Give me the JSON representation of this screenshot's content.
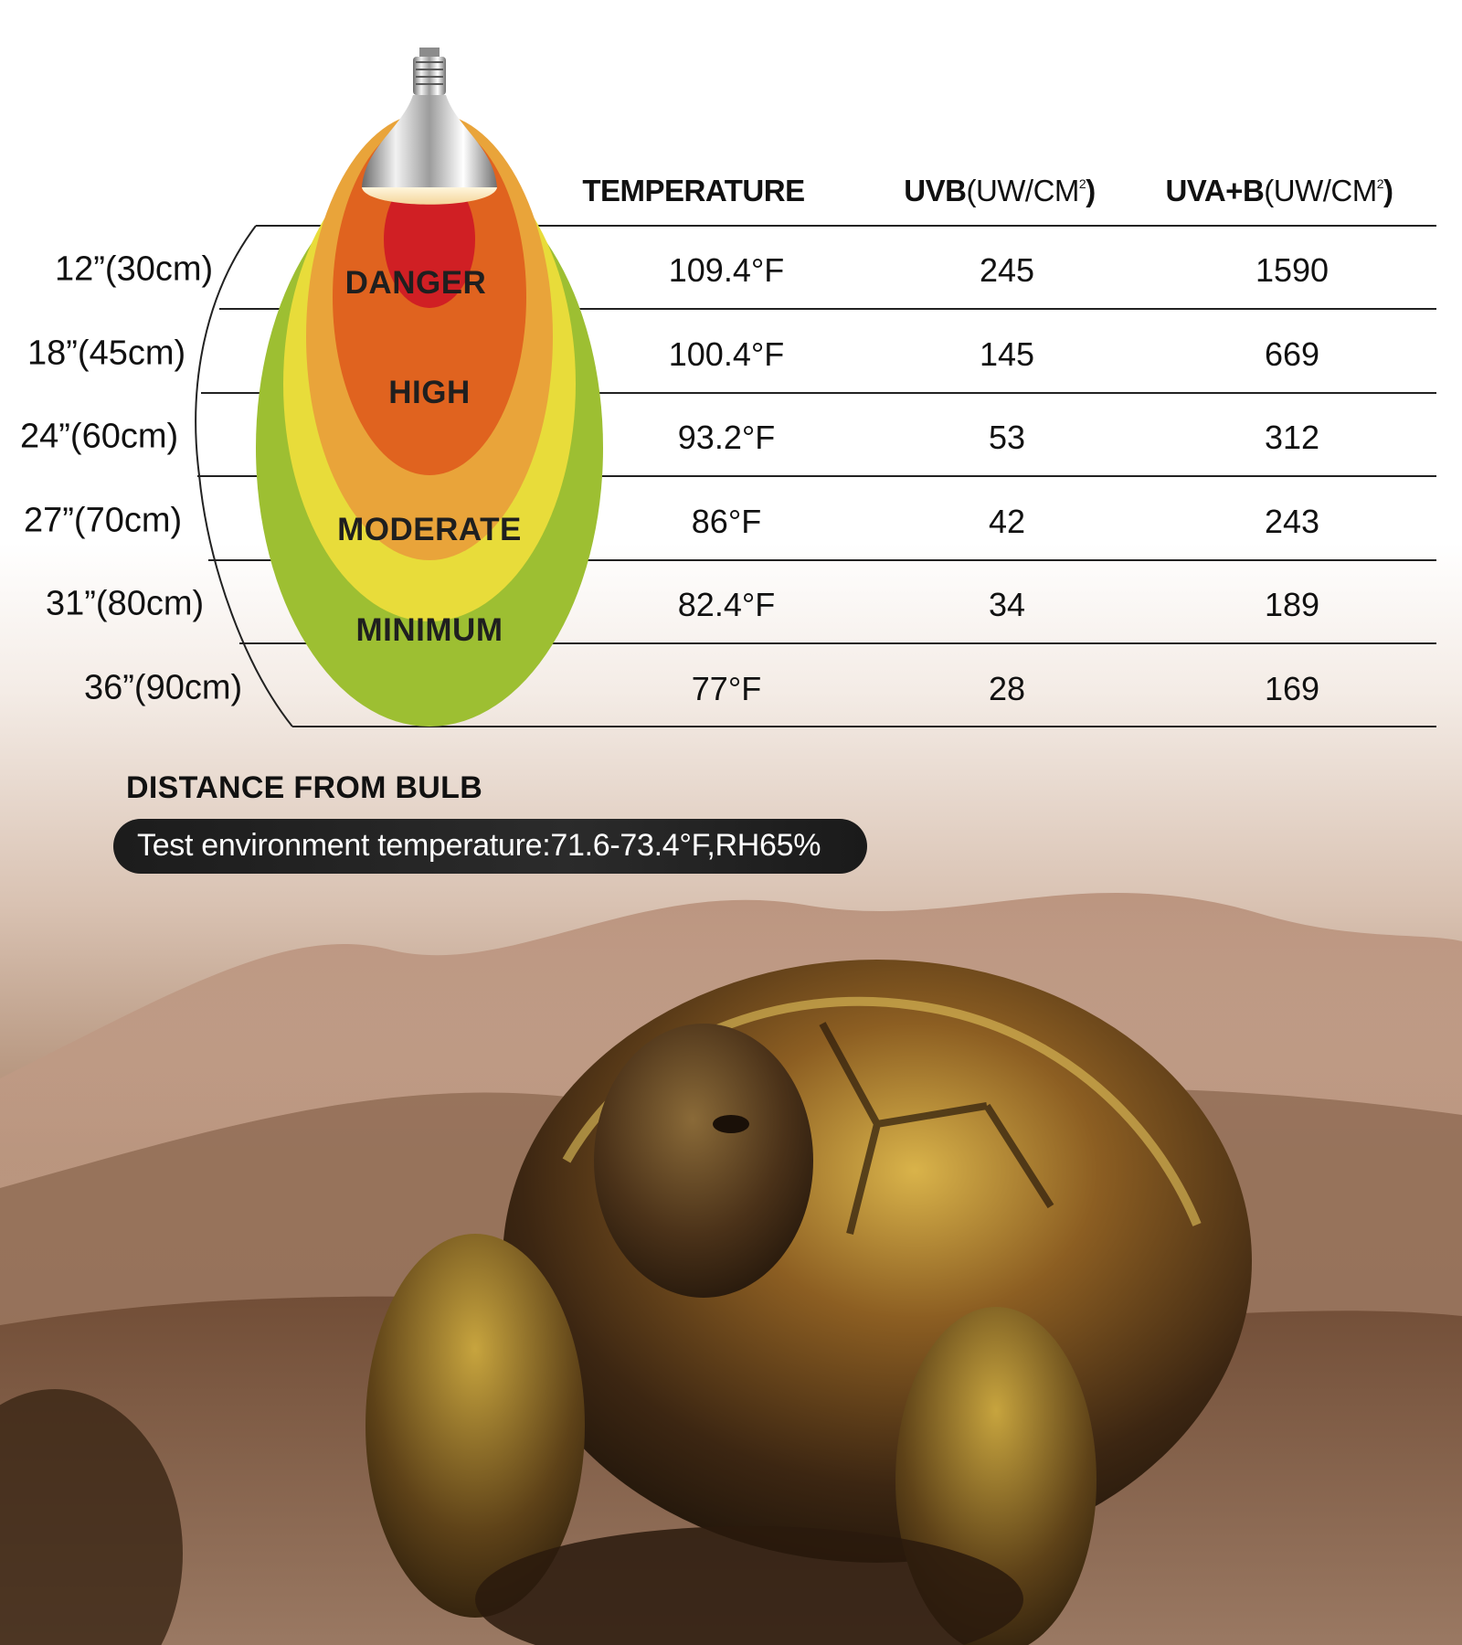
{
  "table": {
    "headers": {
      "temperature": "TEMPERATURE",
      "uvb_bold": "UVB",
      "uvb_unit": "(UW/CM",
      "uvb_sup": "2",
      "uvb_close": ")",
      "uvab_bold": "UVA+B",
      "uvab_unit": "(UW/CM",
      "uvab_sup": "2",
      "uvab_close": ")"
    },
    "rows": [
      {
        "distance": "12”(30cm)",
        "temperature": "109.4°F",
        "uvb": "245",
        "uvab": "1590"
      },
      {
        "distance": "18”(45cm)",
        "temperature": "100.4°F",
        "uvb": "145",
        "uvab": "669"
      },
      {
        "distance": "24”(60cm)",
        "temperature": "93.2°F",
        "uvb": "53",
        "uvab": "312"
      },
      {
        "distance": "27”(70cm)",
        "temperature": "86°F",
        "uvb": "42",
        "uvab": "243"
      },
      {
        "distance": "31”(80cm)",
        "temperature": "82.4°F",
        "uvb": "34",
        "uvab": "189"
      },
      {
        "distance": "36”(90cm)",
        "temperature": "77°F",
        "uvb": "28",
        "uvab": "169"
      }
    ]
  },
  "zones": {
    "danger": "DANGER",
    "high": "HIGH",
    "moderate": "MODERATE",
    "minimum": "MINIMUM"
  },
  "zone_colors": {
    "danger": "#d01f24",
    "high": "#e0631f",
    "warm": "#e9a43a",
    "moderate": "#e8dc3a",
    "minimum": "#9dbf32"
  },
  "footer": {
    "title": "DISTANCE FROM BULB",
    "note": "Test environment temperature:71.6-73.4°F,RH65%"
  }
}
